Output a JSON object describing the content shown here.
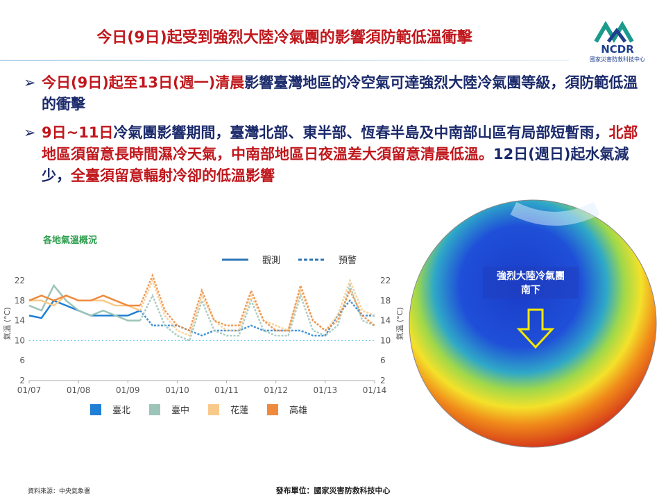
{
  "header": {
    "title": "今日(9日)起受到強烈大陸冷氣團的影響須防範低溫衝擊",
    "logo_text": "NCDR",
    "logo_caption": "國家災害防救科技中心"
  },
  "bullets": [
    {
      "segments": [
        {
          "text": "今日(9日)起至13日(週一)清晨",
          "color": "#c0171c"
        },
        {
          "text": "影響臺灣地區的冷空氣可達強烈大陸冷氣團等級，須防範低溫的衝擊",
          "color": "#1b2a6b"
        }
      ]
    },
    {
      "segments": [
        {
          "text": "9日~11日",
          "color": "#c0171c"
        },
        {
          "text": "冷氣團影響期間，臺灣北部、東半部、恆春半島及中南部山區有局部短暫雨，",
          "color": "#1b2a6b"
        },
        {
          "text": "北部地區須留意長時間濕冷天氣，中南部地區日夜溫差大須留意清晨低溫。",
          "color": "#c0171c"
        },
        {
          "text": "12日(週日)起水氣減少，",
          "color": "#1b2a6b"
        },
        {
          "text": "全臺須留意輻射冷卻的低溫影響",
          "color": "#c0171c"
        }
      ]
    }
  ],
  "chart_data": {
    "type": "line",
    "title": "各地氣溫概況",
    "y_label": "氣溫 (°C)",
    "y2_label": "氣溫 (°C)",
    "style_legend": [
      {
        "name": "觀測",
        "dashed": false
      },
      {
        "name": "預警",
        "dashed": true
      }
    ],
    "x": [
      0,
      0.25,
      0.5,
      0.75,
      1,
      1.25,
      1.5,
      1.75,
      2,
      2.25,
      2.5,
      2.75,
      3,
      3.25,
      3.5,
      3.75,
      4,
      4.25,
      4.5,
      4.75,
      5,
      5.25,
      5.5,
      5.75,
      6,
      6.25,
      6.5,
      6.75,
      7
    ],
    "xlim": [
      0,
      7
    ],
    "xticks": [
      {
        "value": 0,
        "label": "01/07"
      },
      {
        "value": 1,
        "label": "01/08"
      },
      {
        "value": 2,
        "label": "01/09"
      },
      {
        "value": 3,
        "label": "01/10"
      },
      {
        "value": 4,
        "label": "01/11"
      },
      {
        "value": 5,
        "label": "01/12"
      },
      {
        "value": 6,
        "label": "01/13"
      },
      {
        "value": 7,
        "label": "01/14"
      }
    ],
    "ylim": [
      2,
      22
    ],
    "yticks": [
      2,
      6,
      10,
      14,
      18,
      22
    ],
    "y2lim": [
      2,
      22
    ],
    "y2ticks": [
      2,
      6,
      10,
      14,
      18,
      22
    ],
    "threshold": 10,
    "series": [
      {
        "name": "臺北",
        "color": "#1f7fd4",
        "observed": [
          15,
          14.5,
          18,
          17,
          16,
          15,
          15,
          15,
          15,
          16,
          null,
          null,
          null,
          null,
          null,
          null,
          null,
          null,
          null,
          null,
          null,
          null,
          null,
          null,
          null,
          null,
          null,
          null,
          null
        ],
        "forecast": [
          null,
          null,
          null,
          null,
          null,
          null,
          null,
          null,
          null,
          16,
          13,
          13,
          13,
          12,
          11,
          12,
          12,
          12,
          13,
          12,
          12,
          12,
          12,
          11,
          11,
          15,
          18,
          15,
          15
        ]
      },
      {
        "name": "臺中",
        "color": "#9cc4b8",
        "observed": [
          17,
          16,
          21,
          18,
          16,
          15,
          16,
          15,
          14,
          14,
          null,
          null,
          null,
          null,
          null,
          null,
          null,
          null,
          null,
          null,
          null,
          null,
          null,
          null,
          null,
          null,
          null,
          null,
          null
        ],
        "forecast": [
          null,
          null,
          null,
          null,
          null,
          null,
          null,
          null,
          null,
          14,
          19,
          13,
          11,
          10,
          18,
          12,
          11,
          11,
          18,
          12,
          11,
          11,
          19,
          12,
          11,
          13,
          21,
          14,
          13
        ]
      },
      {
        "name": "花蓮",
        "color": "#f8c98a",
        "observed": [
          18,
          18,
          17,
          19,
          18,
          18,
          18,
          17,
          17,
          16,
          null,
          null,
          null,
          null,
          null,
          null,
          null,
          null,
          null,
          null,
          null,
          null,
          null,
          null,
          null,
          null,
          null,
          null,
          null
        ],
        "forecast": [
          null,
          null,
          null,
          null,
          null,
          null,
          null,
          null,
          null,
          16,
          22,
          15,
          12,
          11,
          19,
          14,
          12,
          12,
          19,
          14,
          13,
          12,
          20,
          14,
          12,
          15,
          22,
          16,
          15
        ]
      },
      {
        "name": "高雄",
        "color": "#ef8a3c",
        "observed": [
          18,
          19,
          18,
          19,
          18,
          18,
          19,
          18,
          17,
          17,
          null,
          null,
          null,
          null,
          null,
          null,
          null,
          null,
          null,
          null,
          null,
          null,
          null,
          null,
          null,
          null,
          null,
          null,
          null
        ],
        "forecast": [
          null,
          null,
          null,
          null,
          null,
          null,
          null,
          null,
          null,
          17,
          23,
          16,
          13,
          12,
          20,
          14,
          13,
          13,
          20,
          14,
          12,
          12,
          21,
          14,
          12,
          14,
          20,
          15,
          13
        ]
      }
    ]
  },
  "map": {
    "annotation": [
      "強烈大陸冷氣團",
      "南下"
    ]
  },
  "footer": {
    "source": "資料來源：中央氣象署",
    "publisher": "發布單位：國家災害防救科技中心"
  }
}
